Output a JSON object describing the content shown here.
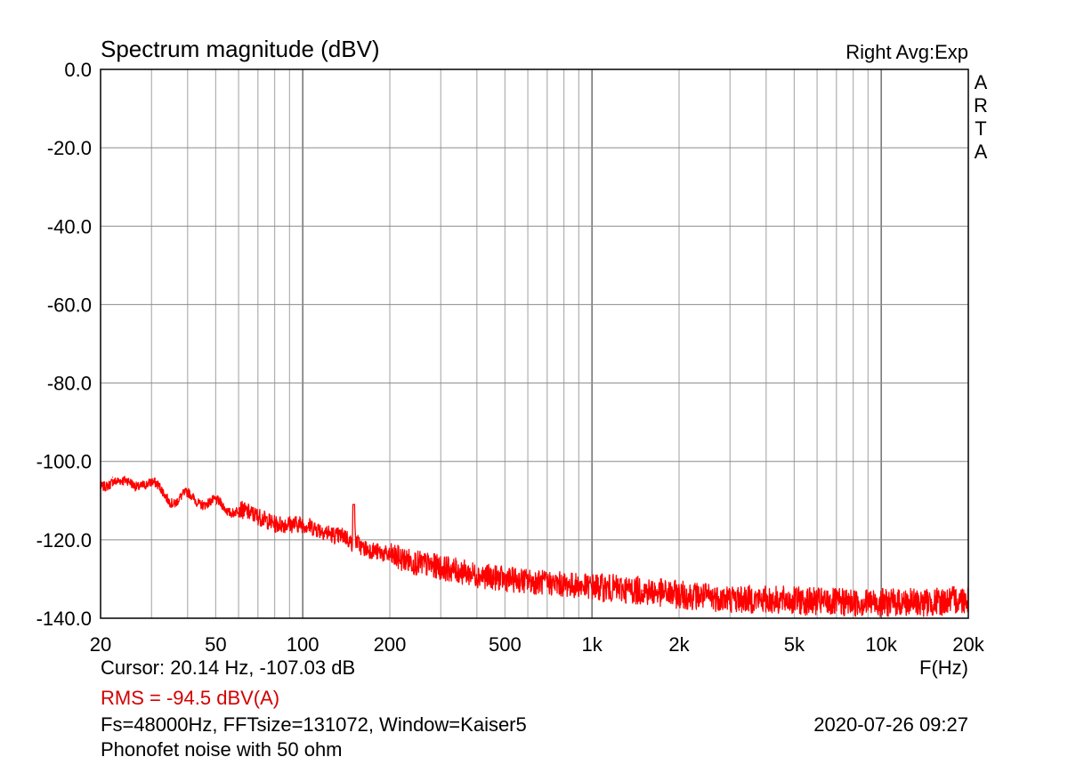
{
  "header": {
    "title": "Spectrum magnitude (dBV)",
    "avg_mode": "Right Avg:Exp",
    "brand_vertical": "ARTA"
  },
  "footer": {
    "cursor": "Cursor: 20.14 Hz, -107.03 dB",
    "rms": "RMS =  -94.5 dBV(A)",
    "settings": "Fs=48000Hz, FFTsize=131072, Window=Kaiser5",
    "datetime": "2020-07-26  09:27",
    "description": "Phonofet noise with 50 ohm"
  },
  "colors": {
    "trace": "#ff0000",
    "rms_text": "#d40000",
    "grid": "#a0a0a0",
    "frame": "#000000"
  },
  "chart_data": {
    "type": "line",
    "title": "Spectrum magnitude (dBV)",
    "xlabel": "F(Hz)",
    "ylabel": "",
    "x_scale": "log",
    "xlim": [
      20,
      20000
    ],
    "ylim": [
      -140,
      0
    ],
    "grid": true,
    "x_ticks": [
      20,
      50,
      100,
      200,
      500,
      1000,
      2000,
      5000,
      10000,
      20000
    ],
    "x_tick_labels": [
      "20",
      "50",
      "100",
      "200",
      "500",
      "1k",
      "2k",
      "5k",
      "10k",
      "20k"
    ],
    "y_ticks": [
      0,
      -20,
      -40,
      -60,
      -80,
      -100,
      -120,
      -140
    ],
    "y_tick_labels": [
      "0.0",
      "-20.0",
      "-40.0",
      "-60.0",
      "-80.0",
      "-100.0",
      "-120.0",
      "-140.0"
    ],
    "series": [
      {
        "color": "#ff0000",
        "x": [
          20,
          22,
          24,
          26,
          28,
          30,
          33,
          36,
          40,
          45,
          50,
          55,
          60,
          70,
          80,
          90,
          100,
          110,
          120,
          130,
          140,
          148,
          150,
          152,
          160,
          180,
          200,
          250,
          300,
          400,
          500,
          700,
          1000,
          1500,
          2000,
          3000,
          5000,
          7000,
          10000,
          15000,
          20000
        ],
        "y": [
          -107,
          -104,
          -106,
          -106,
          -105,
          -106,
          -108,
          -110,
          -109,
          -110,
          -111,
          -112,
          -112,
          -114,
          -116,
          -116,
          -116,
          -117,
          -118,
          -119,
          -119,
          -121,
          -111,
          -120,
          -122,
          -123,
          -124,
          -126,
          -127,
          -129,
          -130,
          -131,
          -132,
          -133,
          -134,
          -135,
          -135.5,
          -136,
          -136,
          -136,
          -135
        ]
      }
    ]
  }
}
